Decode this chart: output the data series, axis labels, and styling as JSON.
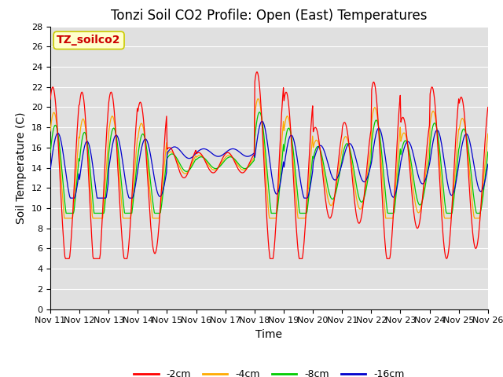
{
  "title": "Tonzi Soil CO2 Profile: Open (East) Temperatures",
  "xlabel": "Time",
  "ylabel": "Soil Temperature (C)",
  "ylim": [
    0,
    28
  ],
  "yticks": [
    0,
    2,
    4,
    6,
    8,
    10,
    12,
    14,
    16,
    18,
    20,
    22,
    24,
    26,
    28
  ],
  "xtick_labels": [
    "Nov 11",
    "Nov 12",
    "Nov 13",
    "Nov 14",
    "Nov 15",
    "Nov 16",
    "Nov 17",
    "Nov 18",
    "Nov 19",
    "Nov 20",
    "Nov 21",
    "Nov 22",
    "Nov 23",
    "Nov 24",
    "Nov 25",
    "Nov 26"
  ],
  "legend_label": "TZ_soilco2",
  "legend_box_facecolor": "#ffffcc",
  "legend_box_edgecolor": "#cccc00",
  "legend_text_color": "#cc0000",
  "series_labels": [
    "-2cm",
    "-4cm",
    "-8cm",
    "-16cm"
  ],
  "series_colors": [
    "#ff0000",
    "#ffaa00",
    "#00cc00",
    "#0000cc"
  ],
  "plot_bg_color": "#e0e0e0",
  "grid_color": "#ffffff",
  "title_fontsize": 12,
  "axis_label_fontsize": 10,
  "tick_fontsize": 8,
  "legend_fontsize": 9,
  "n_days": 15,
  "n_pts_per_day": 48,
  "peak_hour": 14,
  "day_means": [
    13.0,
    12.0,
    13.0,
    13.0,
    14.5,
    14.5,
    14.5,
    14.0,
    13.0,
    13.5,
    13.5,
    13.5,
    13.5,
    13.5,
    13.5
  ],
  "day_amps": [
    9.0,
    9.5,
    8.5,
    7.5,
    1.5,
    1.0,
    1.0,
    9.5,
    8.5,
    4.5,
    5.0,
    9.0,
    5.5,
    8.5,
    7.5
  ],
  "phase_lag_4cm": 0.25,
  "phase_lag_8cm": 0.55,
  "phase_lag_16cm": 1.1,
  "amp_ratio_4cm": 0.72,
  "amp_ratio_8cm": 0.58,
  "amp_ratio_16cm": 0.38
}
